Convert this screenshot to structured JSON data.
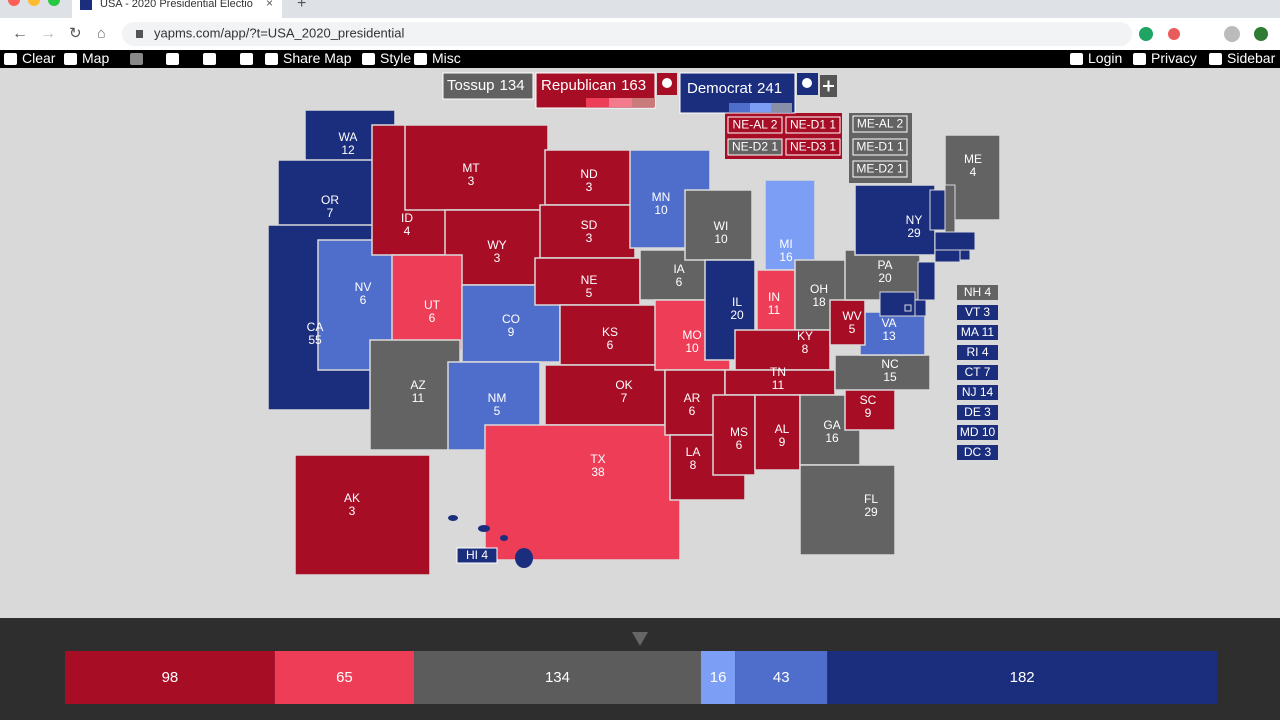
{
  "browser": {
    "tab_title": "USA - 2020 Presidential Electio",
    "url": "yapms.com/app/?t=USA_2020_presidential"
  },
  "toolbar": {
    "left": [
      "Clear",
      "Map",
      "Share Map",
      "Style",
      "Misc"
    ],
    "right": [
      "Login",
      "Privacy",
      "Sidebar"
    ]
  },
  "legend": {
    "tossup": {
      "label": "Tossup",
      "ev": 134,
      "color": "#616161"
    },
    "republican": {
      "label": "Republican",
      "ev": 163,
      "color": "#a80d26",
      "shades": [
        "#a80d26",
        "#ed3d57",
        "#f37a8c",
        "#c97a7a"
      ]
    },
    "democrat": {
      "label": "Democrat",
      "ev": 241,
      "color": "#1b2d7d",
      "shades": [
        "#1b2d7d",
        "#4f6ecb",
        "#7c9ff5",
        "#8a8fa8"
      ]
    }
  },
  "states": [
    {
      "abbr": "WA",
      "ev": 12,
      "color": "#1b2d7d"
    },
    {
      "abbr": "OR",
      "ev": 7,
      "color": "#1b2d7d"
    },
    {
      "abbr": "CA",
      "ev": 55,
      "color": "#1b2d7d"
    },
    {
      "abbr": "NV",
      "ev": 6,
      "color": "#4f6ecb"
    },
    {
      "abbr": "ID",
      "ev": 4,
      "color": "#a80d26"
    },
    {
      "abbr": "MT",
      "ev": 3,
      "color": "#a80d26"
    },
    {
      "abbr": "WY",
      "ev": 3,
      "color": "#a80d26"
    },
    {
      "abbr": "UT",
      "ev": 6,
      "color": "#ed3d57"
    },
    {
      "abbr": "AZ",
      "ev": 11,
      "color": "#636363"
    },
    {
      "abbr": "CO",
      "ev": 9,
      "color": "#4f6ecb"
    },
    {
      "abbr": "NM",
      "ev": 5,
      "color": "#4f6ecb"
    },
    {
      "abbr": "ND",
      "ev": 3,
      "color": "#a80d26"
    },
    {
      "abbr": "SD",
      "ev": 3,
      "color": "#a80d26"
    },
    {
      "abbr": "NE",
      "ev": 5,
      "color": "#a80d26"
    },
    {
      "abbr": "KS",
      "ev": 6,
      "color": "#a80d26"
    },
    {
      "abbr": "OK",
      "ev": 7,
      "color": "#a80d26"
    },
    {
      "abbr": "TX",
      "ev": 38,
      "color": "#ed3d57"
    },
    {
      "abbr": "MN",
      "ev": 10,
      "color": "#4f6ecb"
    },
    {
      "abbr": "IA",
      "ev": 6,
      "color": "#636363"
    },
    {
      "abbr": "MO",
      "ev": 10,
      "color": "#ed3d57"
    },
    {
      "abbr": "AR",
      "ev": 6,
      "color": "#a80d26"
    },
    {
      "abbr": "LA",
      "ev": 8,
      "color": "#a80d26"
    },
    {
      "abbr": "WI",
      "ev": 10,
      "color": "#636363"
    },
    {
      "abbr": "IL",
      "ev": 20,
      "color": "#1b2d7d"
    },
    {
      "abbr": "MI",
      "ev": 16,
      "color": "#7c9ff5"
    },
    {
      "abbr": "IN",
      "ev": 11,
      "color": "#ed3d57"
    },
    {
      "abbr": "OH",
      "ev": 18,
      "color": "#636363"
    },
    {
      "abbr": "KY",
      "ev": 8,
      "color": "#a80d26"
    },
    {
      "abbr": "TN",
      "ev": 11,
      "color": "#a80d26"
    },
    {
      "abbr": "MS",
      "ev": 6,
      "color": "#a80d26"
    },
    {
      "abbr": "AL",
      "ev": 9,
      "color": "#a80d26"
    },
    {
      "abbr": "GA",
      "ev": 16,
      "color": "#636363"
    },
    {
      "abbr": "FL",
      "ev": 29,
      "color": "#636363"
    },
    {
      "abbr": "SC",
      "ev": 9,
      "color": "#a80d26"
    },
    {
      "abbr": "NC",
      "ev": 15,
      "color": "#636363"
    },
    {
      "abbr": "VA",
      "ev": 13,
      "color": "#4f6ecb"
    },
    {
      "abbr": "WV",
      "ev": 5,
      "color": "#a80d26"
    },
    {
      "abbr": "PA",
      "ev": 20,
      "color": "#636363"
    },
    {
      "abbr": "NY",
      "ev": 29,
      "color": "#1b2d7d"
    },
    {
      "abbr": "ME",
      "ev": 4,
      "color": "#636363"
    },
    {
      "abbr": "AK",
      "ev": 3,
      "color": "#a80d26"
    }
  ],
  "small_states": [
    {
      "label": "NH 4",
      "color": "#636363"
    },
    {
      "label": "VT 3",
      "color": "#1b2d7d"
    },
    {
      "label": "MA 11",
      "color": "#1b2d7d"
    },
    {
      "label": "RI 4",
      "color": "#1b2d7d"
    },
    {
      "label": "CT 7",
      "color": "#1b2d7d"
    },
    {
      "label": "NJ 14",
      "color": "#1b2d7d"
    },
    {
      "label": "DE 3",
      "color": "#1b2d7d"
    },
    {
      "label": "MD 10",
      "color": "#1b2d7d"
    },
    {
      "label": "DC 3",
      "color": "#1b2d7d"
    }
  ],
  "hawaii": {
    "label": "HI 4",
    "color": "#1b2d7d"
  },
  "districts": [
    {
      "label": "NE-AL 2",
      "color": "#a80d26"
    },
    {
      "label": "NE-D1 1",
      "color": "#a80d26"
    },
    {
      "label": "NE-D2 1",
      "color": "#636363"
    },
    {
      "label": "NE-D3 1",
      "color": "#a80d26"
    },
    {
      "label": "ME-AL 2",
      "color": "#636363"
    },
    {
      "label": "ME-D1 1",
      "color": "#636363"
    },
    {
      "label": "ME-D2 1",
      "color": "#636363"
    }
  ],
  "bar": {
    "total": 538,
    "segments": [
      {
        "value": 98,
        "color": "#a80d26"
      },
      {
        "value": 65,
        "color": "#ed3d57"
      },
      {
        "value": 134,
        "color": "#5c5c5c"
      },
      {
        "value": 16,
        "color": "#7c9ff5"
      },
      {
        "value": 43,
        "color": "#4f6ecb"
      },
      {
        "value": 182,
        "color": "#1b2d7d"
      }
    ]
  }
}
